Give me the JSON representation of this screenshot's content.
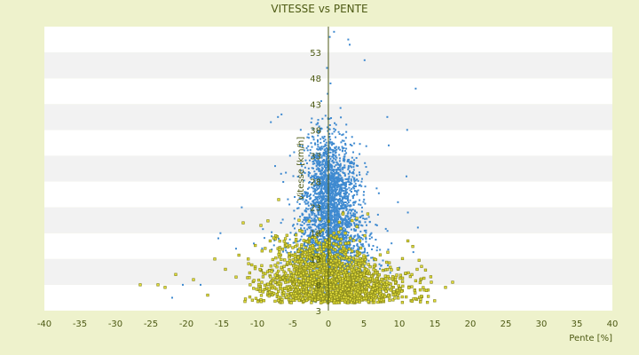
{
  "chart_data": {
    "type": "scatter",
    "title": "VITESSE vs PENTE",
    "xlabel": "Pente [%]",
    "ylabel": "Vitesse [km/h]",
    "xlim": [
      -40,
      40
    ],
    "ylim": [
      3,
      58
    ],
    "x_ticks": [
      "-40",
      "-35",
      "-30",
      "-25",
      "-20",
      "-15",
      "-10",
      "-5",
      "0",
      "5",
      "10",
      "15",
      "20",
      "25",
      "30",
      "35",
      "40"
    ],
    "y_ticks": [
      "3",
      "8",
      "13",
      "18",
      "23",
      "28",
      "33",
      "38",
      "43",
      "48",
      "53"
    ],
    "grid": "alternating horizontal bands",
    "legend": "none",
    "colors": {
      "background": "#eef2cc",
      "band_light": "#ffffff",
      "band_dark": "#f2f2f2",
      "series_blue": "#3f8ad0",
      "series_olive": "#8c8c1e",
      "axis": "#4d5a14"
    },
    "series": [
      {
        "color": "#3f8ad0",
        "points": [
          [
            0.2,
            56
          ],
          [
            0.8,
            57
          ],
          [
            2.8,
            55.5
          ],
          [
            3.0,
            54.5
          ],
          [
            5.1,
            51.5
          ],
          [
            12.3,
            46
          ],
          [
            11.1,
            38
          ],
          [
            8.5,
            35
          ],
          [
            8.3,
            40.5
          ],
          [
            -6.6,
            41
          ],
          [
            -7.1,
            40.5
          ],
          [
            -8.1,
            39.5
          ],
          [
            -5.4,
            33
          ],
          [
            -4.0,
            35
          ],
          [
            -7.5,
            31
          ],
          [
            -12.2,
            23
          ],
          [
            -15.2,
            18
          ],
          [
            -15.5,
            17
          ],
          [
            -10.5,
            16
          ],
          [
            -0.2,
            50
          ],
          [
            0.3,
            47
          ],
          [
            -0.1,
            45
          ],
          [
            11.0,
            29
          ],
          [
            11.2,
            22
          ],
          [
            9.8,
            24
          ],
          [
            -13.0,
            15
          ],
          [
            -18.0,
            8
          ],
          [
            -22.0,
            5.5
          ],
          [
            -20.5,
            8
          ],
          [
            5.0,
            26
          ],
          [
            3.0,
            30
          ],
          [
            -2.0,
            28
          ],
          [
            2.0,
            34
          ],
          [
            -1.5,
            36
          ],
          [
            1.0,
            38
          ],
          [
            -3.0,
            25
          ],
          [
            4.0,
            22
          ]
        ],
        "clusters": [
          {
            "cx": 0.3,
            "cy": 22,
            "sx": 2.0,
            "sy": 6.5,
            "n": 1700
          },
          {
            "cx": 0.5,
            "cy": 14,
            "sx": 3.2,
            "sy": 4.0,
            "n": 900
          },
          {
            "cx": 0.0,
            "cy": 30,
            "sx": 1.3,
            "sy": 4.5,
            "n": 450
          }
        ]
      },
      {
        "color": "#8c8c1e",
        "points": [
          [
            -26.5,
            8
          ],
          [
            -24.0,
            8
          ],
          [
            -23.0,
            7.5
          ],
          [
            -21.5,
            10
          ],
          [
            -19.0,
            9
          ],
          [
            -17.0,
            6
          ],
          [
            -16.0,
            13
          ],
          [
            -14.5,
            11
          ],
          [
            -13.0,
            9.5
          ],
          [
            12.5,
            11
          ],
          [
            13.0,
            9
          ],
          [
            13.5,
            7
          ],
          [
            14.5,
            8.5
          ],
          [
            16.5,
            7.5
          ],
          [
            17.5,
            8.5
          ],
          [
            -12.0,
            20
          ],
          [
            -9.5,
            19.5
          ],
          [
            -7.0,
            24.5
          ],
          [
            11.2,
            16.5
          ]
        ],
        "clusters": [
          {
            "cx": 1.0,
            "cy": 7.5,
            "sx": 5.0,
            "sy": 2.5,
            "n": 1300
          },
          {
            "cx": -1.5,
            "cy": 13,
            "sx": 3.5,
            "sy": 3.0,
            "n": 400
          }
        ]
      }
    ]
  }
}
